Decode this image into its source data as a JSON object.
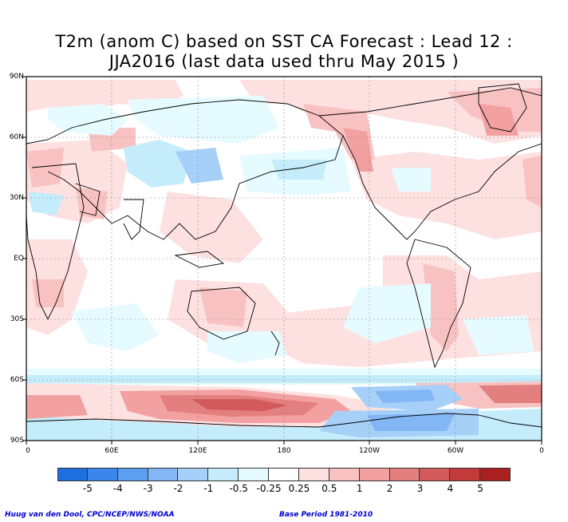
{
  "title": {
    "line1": "T2m (anom C) based on SST CA Forecast : Lead 12 :",
    "line2": "JJA2016 (last data used thru May 2015 )"
  },
  "axes": {
    "lat_labels": [
      "90N",
      "60N",
      "30N",
      "EQ",
      "30S",
      "60S",
      "90S"
    ],
    "lon_labels": [
      "0",
      "60E",
      "120E",
      "180",
      "120W",
      "60W",
      "0"
    ]
  },
  "legend": {
    "tick_labels": [
      "-5",
      "-4",
      "-3",
      "-2",
      "-1",
      "-0.5",
      "-0.25",
      "0.25",
      "0.5",
      "1",
      "2",
      "3",
      "4",
      "5"
    ],
    "colors": [
      "#1e6fe0",
      "#3a86ea",
      "#5c9ef0",
      "#82b6f5",
      "#a6d0f8",
      "#c4ecfa",
      "#e6fbff",
      "#ffffff",
      "#fde0e0",
      "#f9c2c2",
      "#f2a0a0",
      "#e37f7f",
      "#d25a5a",
      "#c23a3a",
      "#aa2020"
    ]
  },
  "footer": {
    "left": "Huug van den Dool, CPC/NCEP/NWS/NOAA",
    "right": "Base Period 1981-2010"
  }
}
